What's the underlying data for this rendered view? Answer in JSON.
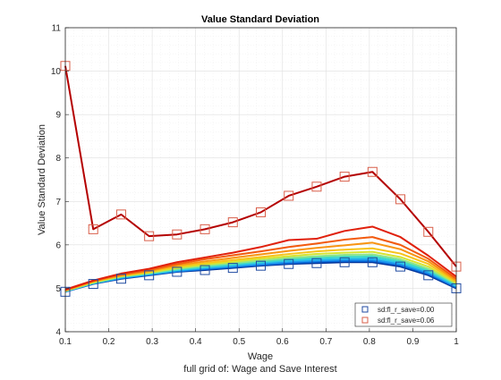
{
  "chart_data": {
    "type": "line",
    "title": "Value Standard Deviation",
    "xlabel": "Wage",
    "ylabel": "Value Standard Deviation",
    "caption": "full grid of: Wage and Save Interest",
    "xlim": [
      0.1,
      1
    ],
    "ylim": [
      4,
      11
    ],
    "xticks": [
      0.1,
      0.2,
      0.3,
      0.4,
      0.5,
      0.6,
      0.7,
      0.8,
      0.9,
      1
    ],
    "xtick_labels": [
      "0.1",
      "0.2",
      "0.3",
      "0.4",
      "0.5",
      "0.6",
      "0.7",
      "0.8",
      "0.9",
      "1"
    ],
    "yticks": [
      4,
      5,
      6,
      7,
      8,
      9,
      10,
      11
    ],
    "ytick_labels": [
      "4",
      "5",
      "6",
      "7",
      "8",
      "9",
      "10",
      "11"
    ],
    "grid": true,
    "legend_position": "bottom-right",
    "x": [
      0.1,
      0.1643,
      0.2286,
      0.2929,
      0.3571,
      0.4214,
      0.4857,
      0.55,
      0.6143,
      0.6786,
      0.7429,
      0.8071,
      0.8714,
      0.9357,
      1.0
    ],
    "series": [
      {
        "color": "#00339a",
        "values": [
          4.92,
          5.1,
          5.22,
          5.3,
          5.38,
          5.42,
          5.47,
          5.52,
          5.56,
          5.58,
          5.6,
          5.6,
          5.5,
          5.3,
          5.0
        ]
      },
      {
        "color": "#0a6edc",
        "values": [
          4.92,
          5.11,
          5.23,
          5.31,
          5.39,
          5.44,
          5.49,
          5.54,
          5.58,
          5.61,
          5.63,
          5.63,
          5.53,
          5.33,
          5.02
        ]
      },
      {
        "color": "#1e9bef",
        "values": [
          4.93,
          5.11,
          5.24,
          5.32,
          5.4,
          5.46,
          5.51,
          5.56,
          5.61,
          5.64,
          5.66,
          5.66,
          5.56,
          5.36,
          5.04
        ]
      },
      {
        "color": "#2ec8e6",
        "values": [
          4.93,
          5.12,
          5.25,
          5.33,
          5.42,
          5.48,
          5.53,
          5.59,
          5.64,
          5.67,
          5.69,
          5.7,
          5.59,
          5.39,
          5.06
        ]
      },
      {
        "color": "#45dcc0",
        "values": [
          4.93,
          5.12,
          5.26,
          5.34,
          5.43,
          5.5,
          5.56,
          5.61,
          5.67,
          5.71,
          5.73,
          5.74,
          5.63,
          5.42,
          5.08
        ]
      },
      {
        "color": "#8ee58a",
        "values": [
          4.94,
          5.13,
          5.27,
          5.35,
          5.45,
          5.52,
          5.58,
          5.64,
          5.7,
          5.74,
          5.77,
          5.78,
          5.67,
          5.45,
          5.1
        ]
      },
      {
        "color": "#d6e432",
        "values": [
          4.94,
          5.14,
          5.28,
          5.36,
          5.47,
          5.55,
          5.61,
          5.68,
          5.74,
          5.79,
          5.82,
          5.84,
          5.72,
          5.5,
          5.12
        ]
      },
      {
        "color": "#f7c31a",
        "values": [
          4.95,
          5.15,
          5.29,
          5.38,
          5.5,
          5.58,
          5.65,
          5.72,
          5.79,
          5.85,
          5.89,
          5.92,
          5.8,
          5.56,
          5.15
        ]
      },
      {
        "color": "#f89412",
        "values": [
          4.95,
          5.16,
          5.3,
          5.4,
          5.53,
          5.62,
          5.7,
          5.78,
          5.86,
          5.93,
          5.99,
          6.05,
          5.9,
          5.62,
          5.18
        ]
      },
      {
        "color": "#f25a0e",
        "values": [
          4.96,
          5.17,
          5.32,
          5.42,
          5.56,
          5.67,
          5.76,
          5.85,
          5.95,
          6.03,
          6.12,
          6.18,
          6.0,
          5.68,
          5.22
        ]
      },
      {
        "color": "#e0200c",
        "values": [
          4.97,
          5.18,
          5.34,
          5.45,
          5.6,
          5.71,
          5.82,
          5.95,
          6.11,
          6.14,
          6.32,
          6.42,
          6.18,
          5.75,
          5.27
        ]
      },
      {
        "color": "#b40000",
        "values": [
          10.12,
          6.36,
          6.7,
          6.2,
          6.24,
          6.36,
          6.52,
          6.75,
          7.13,
          7.34,
          7.57,
          7.68,
          7.05,
          6.3,
          5.5
        ]
      }
    ],
    "markers": [
      {
        "series_index": 0,
        "shape": "square",
        "color": "#1f4aa0",
        "name": "sd:fl_r_save=0.00"
      },
      {
        "series_index": 11,
        "shape": "square",
        "color": "#d95f4a",
        "name": "sd:fl_r_save=0.06"
      }
    ]
  }
}
